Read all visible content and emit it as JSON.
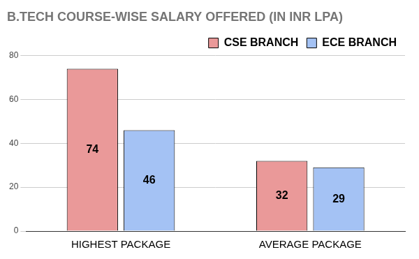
{
  "chart_data": {
    "type": "bar",
    "title": "B.TECH COURSE-WISE SALARY OFFERED (IN INR LPA)",
    "categories": [
      "HIGHEST PACKAGE",
      "AVERAGE PACKAGE"
    ],
    "series": [
      {
        "name": "CSE BRANCH",
        "color": "#ea9999",
        "values": [
          74,
          32
        ]
      },
      {
        "name": "ECE BRANCH",
        "color": "#a4c2f4",
        "values": [
          46,
          29
        ]
      }
    ],
    "ylim": [
      0,
      80
    ],
    "yticks": [
      0,
      20,
      40,
      60,
      80
    ],
    "grid": true,
    "legend": "top-right",
    "data_labels": true
  }
}
